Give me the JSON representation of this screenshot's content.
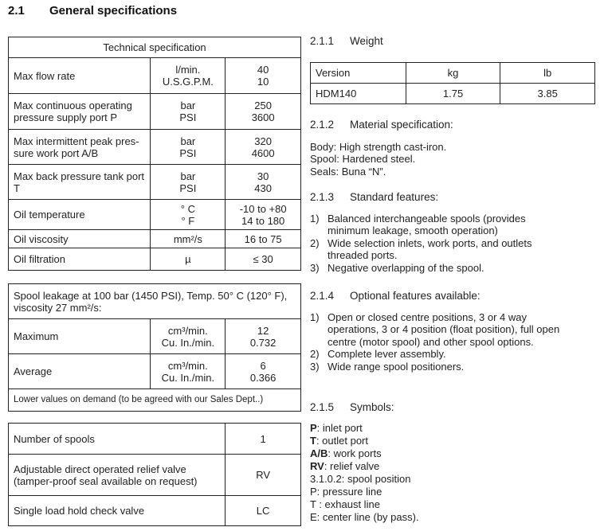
{
  "title": {
    "num": "2.1",
    "text": "General specifications"
  },
  "tech": {
    "header": "Technical specification",
    "rows": [
      {
        "label": "Max flow rate",
        "unit": [
          "l/min.",
          "U.S.G.P.M."
        ],
        "value": [
          "40",
          "10"
        ]
      },
      {
        "label": "Max continuous operating pressure supply port P",
        "unit": [
          "bar",
          "PSI"
        ],
        "value": [
          "250",
          "3600"
        ]
      },
      {
        "label": "Max intermittent peak pres-sure work port A/B",
        "unit": [
          "bar",
          "PSI"
        ],
        "value": [
          "320",
          "4600"
        ]
      },
      {
        "label": "Max back pressure tank port T",
        "unit": [
          "bar",
          "PSI"
        ],
        "value": [
          "30",
          "430"
        ]
      },
      {
        "label": "Oil temperature",
        "unit": [
          "° C",
          "° F"
        ],
        "value": [
          "-10 to +80",
          "14 to 180"
        ]
      },
      {
        "label": "Oil viscosity",
        "unit": [
          "mm²/s"
        ],
        "value": [
          "16 to 75"
        ]
      },
      {
        "label": "Oil filtration",
        "unit": [
          "µ"
        ],
        "value": [
          "≤ 30"
        ]
      }
    ]
  },
  "leak": {
    "header": "Spool leakage at 100 bar (1450 PSI), Temp. 50° C (120° F), viscosity 27 mm²/s:",
    "rows": [
      {
        "label": "Maximum",
        "unit": [
          "cm³/min.",
          "Cu. In./min."
        ],
        "value": [
          "12",
          "0.732"
        ]
      },
      {
        "label": "Average",
        "unit": [
          "cm³/min.",
          "Cu. In./min."
        ],
        "value": [
          "6",
          "0.366"
        ]
      }
    ],
    "footer": "Lower values on demand (to be agreed with our Sales Dept..)"
  },
  "options": [
    {
      "label": "Number of spools",
      "value": "1"
    },
    {
      "label": "Adjustable direct operated relief valve (tamper-proof seal available on request)",
      "value": "RV"
    },
    {
      "label": "Single load hold check valve",
      "value": "LC"
    }
  ],
  "weight": {
    "num": "2.1.1",
    "title": "Weight",
    "headers": [
      "Version",
      "kg",
      "lb"
    ],
    "row": [
      "HDM140",
      "1.75",
      "3.85"
    ]
  },
  "material": {
    "num": "2.1.2",
    "title": "Material specification:",
    "lines": [
      "Body: High strength cast-iron.",
      "Spool: Hardened steel.",
      "Seals: Buna “N”."
    ]
  },
  "standard": {
    "num": "2.1.3",
    "title": "Standard features:",
    "items": [
      "Balanced interchangeable spools (provides minimum leakage, smooth operation)",
      "Wide selection inlets, work ports, and outlets threaded ports.",
      "Negative overlapping of the spool."
    ]
  },
  "optional": {
    "num": "2.1.4",
    "title": "Optional features available:",
    "items": [
      "Open or closed centre positions, 3 or 4 way operations, 3 or 4 position (float position), full open centre (motor spool) and other spool options.",
      "Complete lever assembly.",
      "Wide range spool positioners."
    ]
  },
  "symbols": {
    "num": "2.1.5",
    "title": "Symbols:",
    "lines": [
      {
        "key": "P",
        "text": ": inlet port"
      },
      {
        "key": "T",
        "text": ": outlet port"
      },
      {
        "key": "A/B",
        "text": ": work ports"
      },
      {
        "key": "RV",
        "text": ": relief valve"
      },
      {
        "key": "",
        "text": "3.1.0.2: spool position"
      },
      {
        "key": "",
        "text": "P: pressure line"
      },
      {
        "key": "",
        "text": "T : exhaust line"
      },
      {
        "key": "",
        "text": "E: center line (by pass)."
      }
    ]
  }
}
